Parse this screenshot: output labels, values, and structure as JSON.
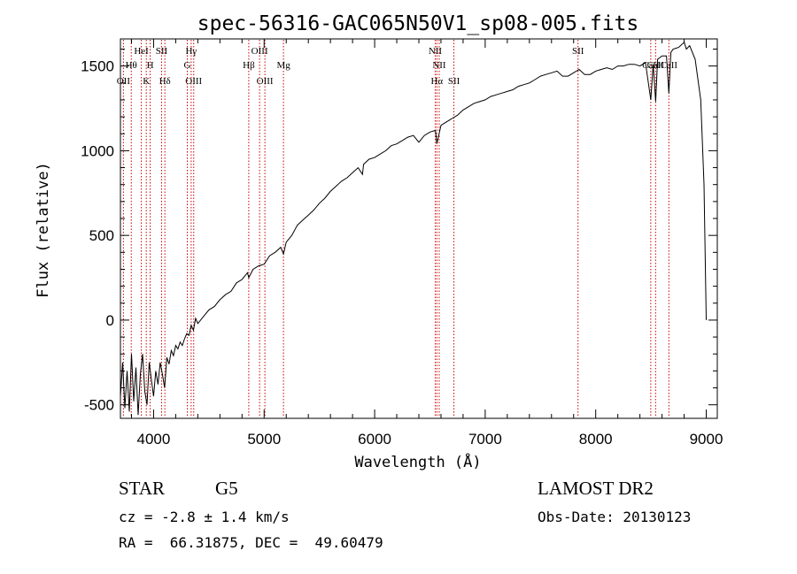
{
  "chart_data": {
    "type": "line",
    "title": "spec-56316-GAC065N50V1_sp08-005.fits",
    "xlabel": "Wavelength (Å)",
    "ylabel": "Flux (relative)",
    "xlim": [
      3700,
      9100
    ],
    "ylim": [
      -580,
      1660
    ],
    "xticks": [
      4000,
      5000,
      6000,
      7000,
      8000,
      9000
    ],
    "yticks": [
      -500,
      0,
      500,
      1000,
      1500
    ],
    "series": [
      {
        "values_x": [
          3700,
          3720,
          3740,
          3760,
          3780,
          3800,
          3820,
          3840,
          3860,
          3880,
          3900,
          3920,
          3940,
          3960,
          3980,
          4000,
          4020,
          4040,
          4060,
          4080,
          4100,
          4120,
          4140,
          4160,
          4180,
          4200,
          4220,
          4240,
          4260,
          4280,
          4300,
          4320,
          4340,
          4360,
          4380,
          4400,
          4450,
          4500,
          4550,
          4600,
          4650,
          4700,
          4750,
          4800,
          4850,
          4861,
          4900,
          4950,
          5000,
          5050,
          5100,
          5150,
          5175,
          5200,
          5250,
          5300,
          5350,
          5400,
          5450,
          5500,
          5550,
          5600,
          5650,
          5700,
          5750,
          5800,
          5850,
          5890,
          5900,
          5950,
          6000,
          6050,
          6100,
          6150,
          6200,
          6250,
          6300,
          6350,
          6400,
          6450,
          6500,
          6550,
          6563,
          6600,
          6650,
          6700,
          6750,
          6800,
          6850,
          6900,
          6950,
          7000,
          7050,
          7100,
          7150,
          7200,
          7250,
          7300,
          7350,
          7400,
          7450,
          7500,
          7550,
          7600,
          7650,
          7700,
          7750,
          7800,
          7850,
          7900,
          7950,
          8000,
          8050,
          8100,
          8150,
          8200,
          8250,
          8300,
          8350,
          8400,
          8450,
          8498,
          8520,
          8542,
          8560,
          8600,
          8640,
          8662,
          8680,
          8700,
          8750,
          8800,
          8820,
          8850,
          8900,
          8950,
          8980,
          9000
        ],
        "values_y": [
          -450,
          -250,
          -520,
          -300,
          -540,
          -200,
          -480,
          -280,
          -560,
          -320,
          -200,
          -420,
          -500,
          -250,
          -350,
          -450,
          -300,
          -380,
          -250,
          -320,
          -400,
          -220,
          -260,
          -180,
          -210,
          -150,
          -170,
          -130,
          -150,
          -110,
          -80,
          -90,
          -30,
          -60,
          10,
          -20,
          20,
          60,
          80,
          120,
          150,
          170,
          220,
          240,
          280,
          250,
          300,
          320,
          330,
          380,
          400,
          430,
          390,
          460,
          500,
          560,
          590,
          620,
          650,
          690,
          720,
          760,
          790,
          820,
          840,
          870,
          900,
          860,
          920,
          950,
          960,
          980,
          1000,
          1030,
          1040,
          1060,
          1080,
          1090,
          1050,
          1090,
          1110,
          1120,
          1040,
          1150,
          1170,
          1190,
          1210,
          1240,
          1260,
          1280,
          1290,
          1300,
          1320,
          1330,
          1340,
          1350,
          1360,
          1380,
          1390,
          1400,
          1420,
          1440,
          1450,
          1460,
          1470,
          1440,
          1440,
          1460,
          1480,
          1450,
          1450,
          1470,
          1480,
          1490,
          1480,
          1500,
          1500,
          1510,
          1510,
          1500,
          1520,
          1300,
          1510,
          1290,
          1540,
          1560,
          1560,
          1340,
          1580,
          1600,
          1610,
          1640,
          1600,
          1620,
          1540,
          1300,
          800,
          0
        ]
      }
    ],
    "spectral_lines": [
      {
        "label": "OII",
        "x": 3727,
        "row": 3
      },
      {
        "label": "Hθ",
        "x": 3798,
        "row": 2
      },
      {
        "label": "HeI",
        "x": 3889,
        "row": 1
      },
      {
        "label": "K",
        "x": 3934,
        "row": 3
      },
      {
        "label": "H",
        "x": 3969,
        "row": 2
      },
      {
        "label": "SII",
        "x": 4072,
        "row": 1
      },
      {
        "label": "Hδ",
        "x": 4102,
        "row": 3
      },
      {
        "label": "Hγ",
        "x": 4340,
        "row": 1
      },
      {
        "label": "G",
        "x": 4305,
        "row": 2
      },
      {
        "label": "OIII",
        "x": 4363,
        "row": 3
      },
      {
        "label": "Hβ",
        "x": 4861,
        "row": 2
      },
      {
        "label": "OIII",
        "x": 4959,
        "row": 1
      },
      {
        "label": "OIII",
        "x": 5007,
        "row": 3
      },
      {
        "label": "Mg",
        "x": 5175,
        "row": 2
      },
      {
        "label": "NII",
        "x": 6548,
        "row": 1
      },
      {
        "label": "NII",
        "x": 6584,
        "row": 2
      },
      {
        "label": "Hα",
        "x": 6563,
        "row": 3
      },
      {
        "label": "SII",
        "x": 6717,
        "row": 3
      },
      {
        "label": "SII",
        "x": 7840,
        "row": 1
      },
      {
        "label": "CaII",
        "x": 8498,
        "row": 2
      },
      {
        "label": "CaII",
        "x": 8542,
        "row": 2
      },
      {
        "label": "CaII",
        "x": 8662,
        "row": 2
      }
    ],
    "line_marker_color": "#cc0000",
    "spectrum_color": "#000000",
    "grid": false
  },
  "info": {
    "object_class": "STAR",
    "subclass": "G5",
    "survey": "LAMOST DR2",
    "cz": "cz = -2.8 ± 1.4 km/s",
    "obs_date": "Obs-Date: 20130123",
    "coords": "RA =  66.31875, DEC =  49.60479"
  }
}
